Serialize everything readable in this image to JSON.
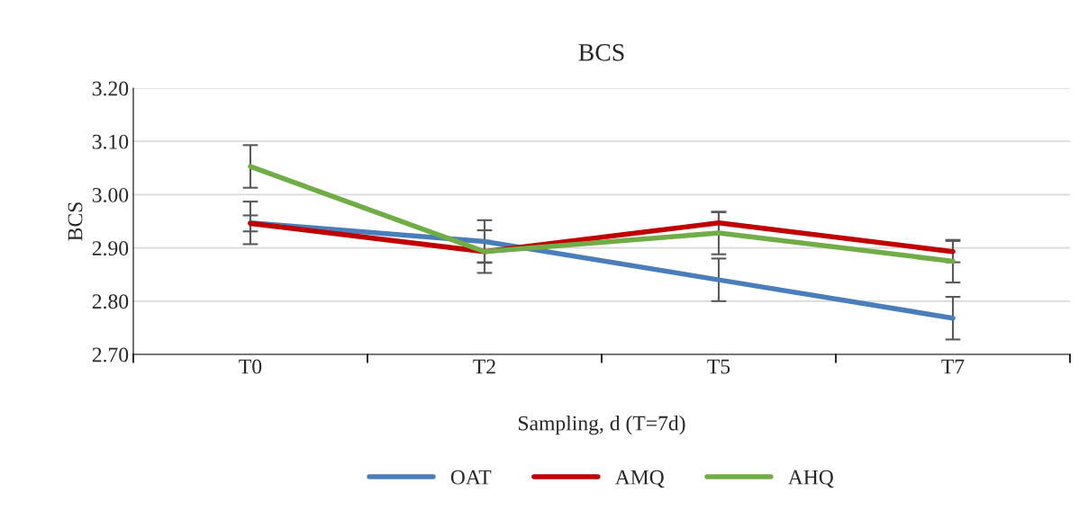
{
  "chart_data": {
    "type": "line",
    "title": "BCS",
    "xlabel": "Sampling, d (T=7d)",
    "ylabel": "BCS",
    "categories": [
      "T0",
      "T2",
      "T5",
      "T7"
    ],
    "ylim": [
      2.7,
      3.2
    ],
    "yticks": [
      {
        "value": 2.7,
        "label": "2.70"
      },
      {
        "value": 2.8,
        "label": "2.80"
      },
      {
        "value": 2.9,
        "label": "2.90"
      },
      {
        "value": 3.0,
        "label": "3.00"
      },
      {
        "value": 3.1,
        "label": "3.10"
      },
      {
        "value": 3.2,
        "label": "3.20"
      }
    ],
    "grid": "y",
    "legend": "bottom",
    "marker": "none",
    "line_style": "solid",
    "series": [
      {
        "name": "OAT",
        "color": "#4a7ebb",
        "values": [
          2.947,
          2.912,
          2.84,
          2.768
        ],
        "errors": [
          0.04,
          0.04,
          0.04,
          0.04
        ]
      },
      {
        "name": "AMQ",
        "color": "#c00000",
        "values": [
          2.946,
          2.893,
          2.947,
          2.893
        ],
        "errors": [
          0.015,
          0.02,
          0.02,
          0.02
        ]
      },
      {
        "name": "AHQ",
        "color": "#70ad47",
        "values": [
          3.053,
          2.893,
          2.928,
          2.875
        ],
        "errors": [
          0.04,
          0.04,
          0.04,
          0.04
        ]
      }
    ]
  }
}
